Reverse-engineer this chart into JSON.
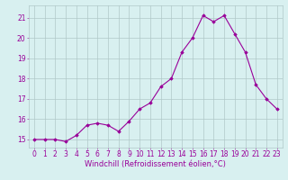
{
  "x": [
    0,
    1,
    2,
    3,
    4,
    5,
    6,
    7,
    8,
    9,
    10,
    11,
    12,
    13,
    14,
    15,
    16,
    17,
    18,
    19,
    20,
    21,
    22,
    23
  ],
  "y": [
    15.0,
    15.0,
    15.0,
    14.9,
    15.2,
    15.7,
    15.8,
    15.7,
    15.4,
    15.9,
    16.5,
    16.8,
    17.6,
    18.0,
    19.3,
    20.0,
    21.1,
    20.8,
    21.1,
    20.2,
    19.3,
    17.7,
    17.0,
    16.5
  ],
  "line_color": "#990099",
  "marker": "D",
  "marker_size": 1.8,
  "bg_color": "#d8f0f0",
  "grid_color": "#b0c8c8",
  "xlabel": "Windchill (Refroidissement éolien,°C)",
  "xlabel_color": "#990099",
  "xlabel_fontsize": 6.0,
  "tick_color": "#990099",
  "tick_fontsize": 5.5,
  "ylim": [
    14.6,
    21.6
  ],
  "xlim": [
    -0.5,
    23.5
  ],
  "yticks": [
    15,
    16,
    17,
    18,
    19,
    20,
    21
  ],
  "xticks": [
    0,
    1,
    2,
    3,
    4,
    5,
    6,
    7,
    8,
    9,
    10,
    11,
    12,
    13,
    14,
    15,
    16,
    17,
    18,
    19,
    20,
    21,
    22,
    23
  ]
}
